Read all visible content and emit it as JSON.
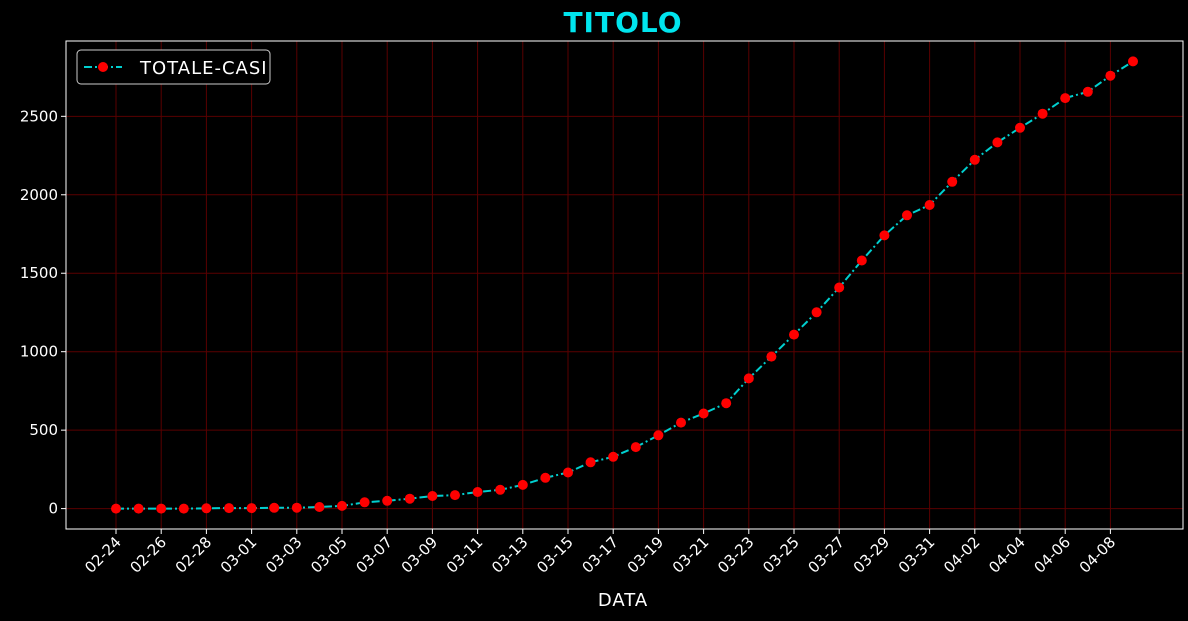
{
  "chart_data": {
    "type": "line",
    "title": "TITOLO",
    "xlabel": "DATA",
    "ylabel": "",
    "ylim": [
      -130,
      2980
    ],
    "yticks": [
      0,
      500,
      1000,
      1500,
      2000,
      2500
    ],
    "grid": true,
    "legend_position": "top-left",
    "x": [
      "02-24",
      "02-25",
      "02-26",
      "02-27",
      "02-28",
      "02-29",
      "03-01",
      "03-02",
      "03-03",
      "03-04",
      "03-05",
      "03-06",
      "03-07",
      "03-08",
      "03-09",
      "03-10",
      "03-11",
      "03-12",
      "03-13",
      "03-14",
      "03-15",
      "03-16",
      "03-17",
      "03-18",
      "03-19",
      "03-20",
      "03-21",
      "03-22",
      "03-23",
      "03-24",
      "03-25",
      "03-26",
      "03-27",
      "03-28",
      "03-29",
      "03-30",
      "03-31",
      "04-01",
      "04-02",
      "04-03",
      "04-04",
      "04-05",
      "04-06",
      "04-07",
      "04-08",
      "04-09"
    ],
    "xtick_labels": [
      "02-24",
      "02-26",
      "02-28",
      "03-01",
      "03-03",
      "03-05",
      "03-07",
      "03-09",
      "03-11",
      "03-13",
      "03-15",
      "03-17",
      "03-19",
      "03-21",
      "03-23",
      "03-25",
      "03-27",
      "03-29",
      "03-31",
      "04-02",
      "04-04",
      "04-06",
      "04-08"
    ],
    "series": [
      {
        "name": "TOTALE-CASI",
        "line_color": "#00cfcf",
        "marker_color": "#ff0000",
        "values": [
          0,
          0,
          0,
          0,
          2,
          3,
          3,
          5,
          6,
          10,
          17,
          40,
          50,
          63,
          80,
          86,
          106,
          120,
          151,
          196,
          230,
          295,
          330,
          392,
          467,
          548,
          606,
          672,
          830,
          969,
          1109,
          1251,
          1409,
          1581,
          1741,
          1869,
          1935,
          2083,
          2223,
          2334,
          2427,
          2517,
          2616,
          2656,
          2759,
          2850
        ]
      }
    ]
  }
}
